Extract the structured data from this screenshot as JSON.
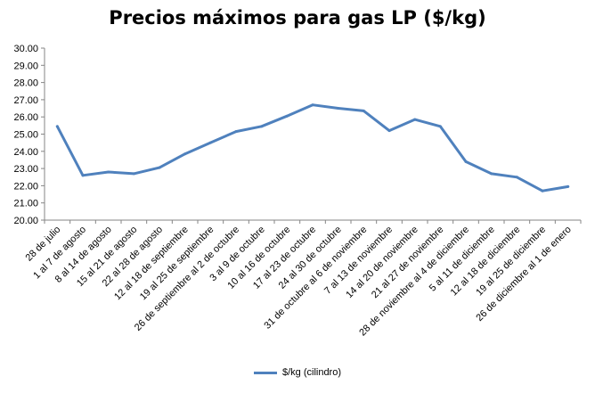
{
  "chart_data": {
    "type": "line",
    "title": "Precios máximos para gas LP ($/kg)",
    "xlabel": "",
    "ylabel": "",
    "ylim": [
      20.0,
      30.0
    ],
    "ytick_step": 1.0,
    "grid": false,
    "legend_position": "bottom",
    "categories": [
      "28 de julio",
      "1 al 7 de agosto",
      "8 al 14 de agosto",
      "15 al 21 de agosto",
      "22 al 28 de agosto",
      "12 al 18 de septiembre",
      "19 al 25 de septiembre",
      "26 de septiembre al 2 de octubre",
      "3 al 9 de octubre",
      "10 al 16 de octubre",
      "17 al 23 de octubre",
      "24 al 30 de octubre",
      "31 de octubre al 6 de noviembre",
      "7 al 13 de noviembre",
      "14 al 20 de noviembre",
      "21 al 27 de noviembre",
      "28 de noviembre al 4 de diciembre",
      "5 al 11 de diciembre",
      "12 al 18 de diciembre",
      "19 al 25 de diciembre",
      "26 de diciembre al 1 de enero"
    ],
    "series": [
      {
        "name": "$/kg (cilindro)",
        "color": "#4f81bd",
        "values": [
          25.45,
          22.6,
          22.8,
          22.7,
          23.05,
          23.85,
          24.5,
          25.15,
          25.45,
          26.05,
          26.7,
          26.5,
          26.35,
          25.2,
          25.85,
          25.45,
          23.4,
          22.7,
          22.5,
          21.7,
          21.95
        ]
      }
    ]
  }
}
